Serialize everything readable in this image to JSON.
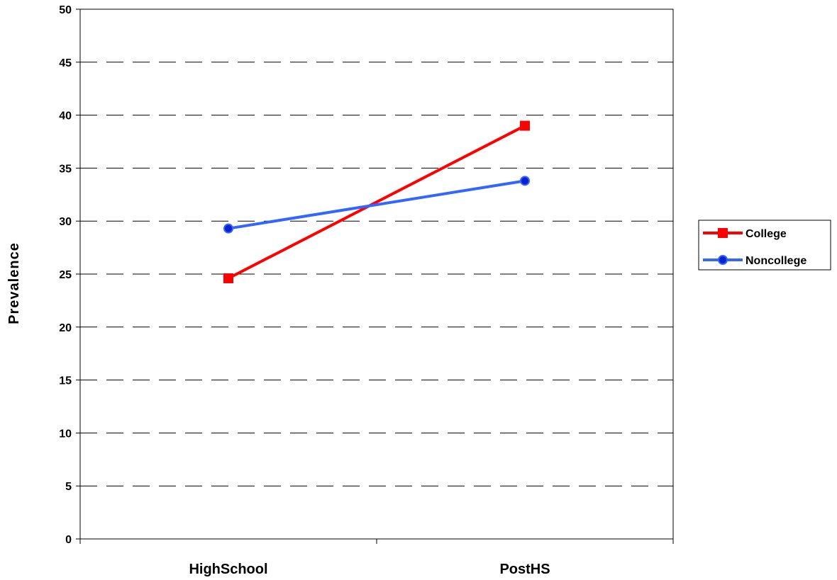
{
  "chart_data": {
    "type": "line",
    "categories": [
      "HighSchool",
      "PostHS"
    ],
    "series": [
      {
        "name": "College",
        "values": [
          24.6,
          39.0
        ],
        "color": "#ff0000",
        "marker": "square"
      },
      {
        "name": "Noncollege",
        "values": [
          29.3,
          33.8
        ],
        "color": "#3366ff",
        "marker": "circle"
      }
    ],
    "ylabel": "Prevalence",
    "ylim": [
      0,
      50
    ],
    "yticks": [
      0,
      5,
      10,
      15,
      20,
      25,
      30,
      35,
      40,
      45,
      50
    ],
    "grid": "dashed horizontal",
    "legend": "right"
  }
}
